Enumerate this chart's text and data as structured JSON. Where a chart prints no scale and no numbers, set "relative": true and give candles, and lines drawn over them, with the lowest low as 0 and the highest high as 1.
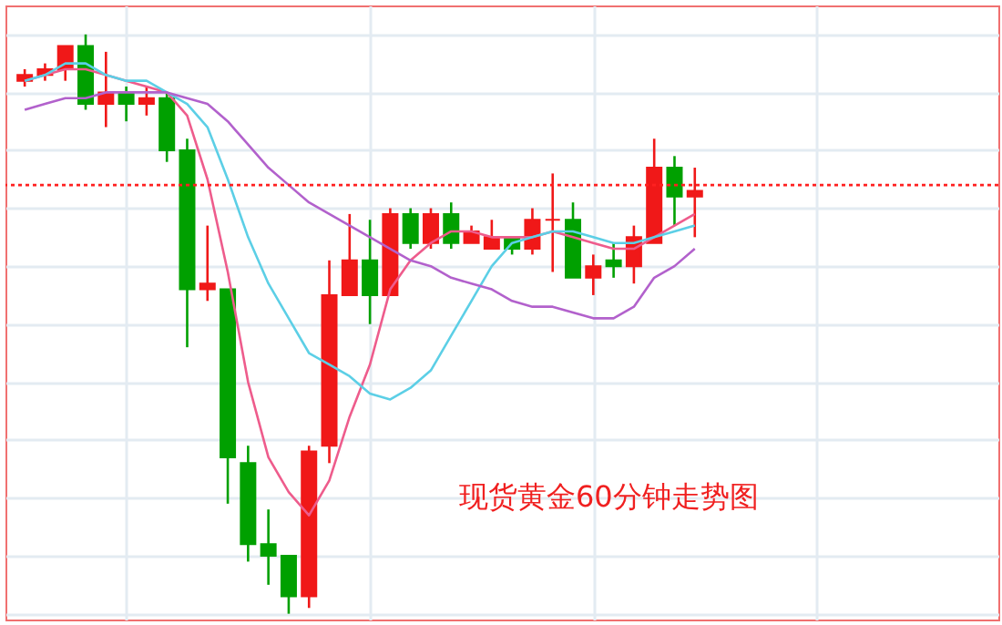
{
  "chart_data": {
    "type": "candlestick",
    "relative": true,
    "grid": true,
    "annotations": [
      "现货黄金60分钟走势图"
    ],
    "categories": [
      null,
      null,
      null,
      null,
      null,
      null,
      null,
      null,
      null,
      null,
      null,
      null,
      null,
      null,
      null,
      null,
      null,
      null,
      null,
      null,
      null,
      null,
      null,
      null,
      null,
      null,
      null,
      null,
      null,
      null,
      null,
      null,
      null,
      null
    ],
    "ohlc": [
      [
        0.92,
        0.94,
        0.91,
        0.93
      ],
      [
        0.93,
        0.95,
        0.92,
        0.94
      ],
      [
        0.94,
        0.98,
        0.92,
        0.98
      ],
      [
        0.98,
        1.0,
        0.87,
        0.88
      ],
      [
        0.88,
        0.97,
        0.84,
        0.9
      ],
      [
        0.9,
        0.91,
        0.85,
        0.88
      ],
      [
        0.88,
        0.91,
        0.86,
        0.89
      ],
      [
        0.89,
        0.9,
        0.78,
        0.8
      ],
      [
        0.8,
        0.82,
        0.46,
        0.56
      ],
      [
        0.56,
        0.67,
        0.54,
        0.57
      ],
      [
        0.56,
        0.56,
        0.19,
        0.27
      ],
      [
        0.26,
        0.29,
        0.09,
        0.12
      ],
      [
        0.12,
        0.18,
        0.05,
        0.1
      ],
      [
        0.1,
        0.1,
        0,
        0.03
      ],
      [
        0.03,
        0.29,
        0.01,
        0.28
      ],
      [
        0.29,
        0.61,
        0.26,
        0.55
      ],
      [
        0.55,
        0.69,
        0.55,
        0.61
      ],
      [
        0.61,
        0.68,
        0.5,
        0.55
      ],
      [
        0.55,
        0.7,
        0.55,
        0.69
      ],
      [
        0.69,
        0.7,
        0.63,
        0.64
      ],
      [
        0.64,
        0.7,
        0.63,
        0.69
      ],
      [
        0.69,
        0.71,
        0.63,
        0.64
      ],
      [
        0.64,
        0.67,
        0.64,
        0.66
      ],
      [
        0.63,
        0.68,
        0.63,
        0.65
      ],
      [
        0.65,
        0.65,
        0.62,
        0.63
      ],
      [
        0.63,
        0.7,
        0.62,
        0.68
      ],
      [
        0.68,
        0.76,
        0.59,
        0.68
      ],
      [
        0.68,
        0.71,
        0.58,
        0.58
      ],
      [
        0.58,
        0.62,
        0.55,
        0.6
      ],
      [
        0.61,
        0.64,
        0.58,
        0.6
      ],
      [
        0.6,
        0.67,
        0.57,
        0.65
      ],
      [
        0.64,
        0.82,
        0.64,
        0.77
      ],
      [
        0.77,
        0.79,
        0.67,
        0.72
      ],
      [
        0.72,
        0.77,
        0.65,
        0.73
      ]
    ],
    "colors": [
      "#f01818",
      "#f01818",
      "#f01818",
      "#00a000",
      "#f01818",
      "#00a000",
      "#f01818",
      "#00a000",
      "#00a000",
      "#f01818",
      "#00a000",
      "#00a000",
      "#00a000",
      "#00a000",
      "#f01818",
      "#f01818",
      "#f01818",
      "#00a000",
      "#f01818",
      "#00a000",
      "#f01818",
      "#00a000",
      "#f01818",
      "#f01818",
      "#00a000",
      "#f01818",
      "#f01818",
      "#00a000",
      "#f01818",
      "#00a000",
      "#f01818",
      "#f01818",
      "#00a000",
      "#f01818"
    ],
    "series": [
      {
        "type": "line",
        "color": "#ee5c8c",
        "values": [
          0.92,
          0.93,
          0.94,
          0.94,
          0.93,
          0.92,
          0.91,
          0.9,
          0.86,
          0.75,
          0.59,
          0.4,
          0.27,
          0.21,
          0.17,
          0.23,
          0.34,
          0.43,
          0.56,
          0.61,
          0.64,
          0.66,
          0.66,
          0.65,
          0.65,
          0.65,
          0.66,
          0.65,
          0.64,
          0.63,
          0.63,
          0.65,
          0.67,
          0.69
        ]
      },
      {
        "type": "line",
        "color": "#5ccfe6",
        "values": [
          0.92,
          0.93,
          0.95,
          0.95,
          0.93,
          0.92,
          0.92,
          0.9,
          0.88,
          0.84,
          0.75,
          0.65,
          0.57,
          0.51,
          0.45,
          0.43,
          0.41,
          0.38,
          0.37,
          0.39,
          0.42,
          0.48,
          0.54,
          0.6,
          0.64,
          0.65,
          0.66,
          0.66,
          0.65,
          0.64,
          0.64,
          0.65,
          0.66,
          0.67
        ]
      },
      {
        "type": "line",
        "color": "#b261cc",
        "values": [
          0.87,
          0.88,
          0.89,
          0.89,
          0.9,
          0.9,
          0.9,
          0.9,
          0.89,
          0.88,
          0.85,
          0.81,
          0.77,
          0.74,
          0.71,
          0.69,
          0.67,
          0.65,
          0.63,
          0.61,
          0.6,
          0.58,
          0.57,
          0.56,
          0.54,
          0.53,
          0.53,
          0.52,
          0.51,
          0.51,
          0.53,
          0.58,
          0.6,
          0.63
        ]
      }
    ],
    "ref_lines": [
      {
        "axis": "y",
        "value": 0.74,
        "color": "#ff2020",
        "line_style": "dotted"
      }
    ]
  }
}
